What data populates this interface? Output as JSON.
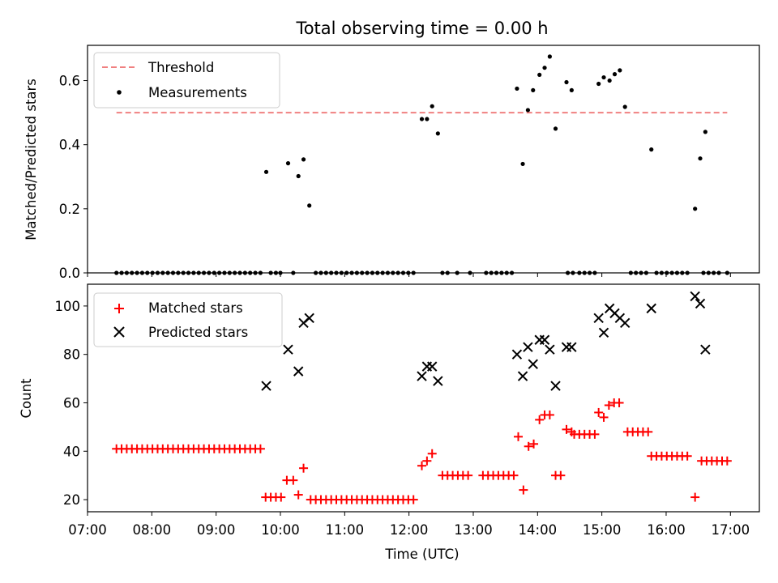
{
  "chart_data": [
    {
      "type": "scatter",
      "title": "Total observing time = 0.00 h",
      "ylabel": "Matched/Predicted stars",
      "xlabel": "",
      "xlim": [
        7.0,
        17.45
      ],
      "ylim": [
        0,
        0.71
      ],
      "yticks": [
        0.0,
        0.2,
        0.4,
        0.6
      ],
      "ytick_labels": [
        "0.0",
        "0.2",
        "0.4",
        "0.6"
      ],
      "legend": {
        "position": "top-left",
        "threshold_label": "Threshold",
        "measurements_label": "Measurements"
      },
      "threshold": {
        "name": "Threshold",
        "value": 0.5,
        "x": [
          7.45,
          16.95
        ],
        "color": "#f08080"
      },
      "zero_x": [
        7.45,
        7.53,
        7.61,
        7.69,
        7.77,
        7.85,
        7.93,
        8.01,
        8.09,
        8.17,
        8.25,
        8.33,
        8.41,
        8.49,
        8.57,
        8.65,
        8.73,
        8.81,
        8.89,
        8.97,
        9.05,
        9.13,
        9.21,
        9.29,
        9.37,
        9.45,
        9.53,
        9.61,
        9.69,
        9.85,
        9.93,
        10.0,
        10.2,
        10.55,
        10.63,
        10.71,
        10.79,
        10.87,
        10.95,
        11.03,
        11.11,
        11.19,
        11.27,
        11.35,
        11.43,
        11.51,
        11.59,
        11.67,
        11.75,
        11.83,
        11.91,
        11.99,
        12.07,
        12.52,
        12.6,
        12.75,
        12.95,
        13.2,
        13.28,
        13.36,
        13.44,
        13.52,
        13.6,
        14.47,
        14.55,
        14.65,
        14.73,
        14.81,
        14.89,
        15.45,
        15.53,
        15.61,
        15.69,
        15.85,
        15.93,
        16.01,
        16.09,
        16.17,
        16.25,
        16.33,
        16.58,
        16.66,
        16.74,
        16.82,
        16.95
      ],
      "measurements": {
        "name": "Measurements",
        "color": "#000000",
        "points": [
          [
            9.78,
            0.315
          ],
          [
            10.12,
            0.342
          ],
          [
            10.28,
            0.302
          ],
          [
            10.36,
            0.354
          ],
          [
            10.45,
            0.21
          ],
          [
            12.2,
            0.48
          ],
          [
            12.28,
            0.48
          ],
          [
            12.36,
            0.52
          ],
          [
            12.45,
            0.435
          ],
          [
            13.68,
            0.575
          ],
          [
            13.77,
            0.34
          ],
          [
            13.85,
            0.508
          ],
          [
            13.93,
            0.57
          ],
          [
            14.03,
            0.618
          ],
          [
            14.11,
            0.64
          ],
          [
            14.19,
            0.675
          ],
          [
            14.28,
            0.45
          ],
          [
            14.45,
            0.595
          ],
          [
            14.53,
            0.57
          ],
          [
            14.95,
            0.59
          ],
          [
            15.03,
            0.61
          ],
          [
            15.12,
            0.6
          ],
          [
            15.2,
            0.62
          ],
          [
            15.28,
            0.632
          ],
          [
            15.36,
            0.518
          ],
          [
            15.77,
            0.385
          ],
          [
            16.45,
            0.2
          ],
          [
            16.53,
            0.357
          ],
          [
            16.61,
            0.44
          ]
        ]
      }
    },
    {
      "type": "scatter",
      "title": "",
      "ylabel": "Count",
      "xlabel": "Time (UTC)",
      "xlim": [
        7.0,
        17.45
      ],
      "ylim": [
        15,
        109
      ],
      "yticks": [
        20,
        40,
        60,
        80,
        100
      ],
      "ytick_labels": [
        "20",
        "40",
        "60",
        "80",
        "100"
      ],
      "xticks": [
        7,
        8,
        9,
        10,
        11,
        12,
        13,
        14,
        15,
        16,
        17
      ],
      "xtick_labels": [
        "07:00",
        "08:00",
        "09:00",
        "10:00",
        "11:00",
        "12:00",
        "13:00",
        "14:00",
        "15:00",
        "16:00",
        "17:00"
      ],
      "legend": {
        "position": "top-left",
        "matched_label": "Matched stars",
        "predicted_label": "Predicted stars"
      },
      "matched": {
        "name": "Matched stars",
        "color": "#ff0000",
        "segments": [
          {
            "x0": 7.45,
            "x1": 9.69,
            "step": 0.08,
            "y": 41
          },
          {
            "x0": 9.77,
            "x1": 10.01,
            "step": 0.08,
            "y": 21
          },
          {
            "x0": 10.47,
            "x1": 12.07,
            "step": 0.08,
            "y": 20
          },
          {
            "x0": 12.52,
            "x1": 12.92,
            "step": 0.08,
            "y": 30
          },
          {
            "x0": 13.15,
            "x1": 13.63,
            "step": 0.08,
            "y": 30
          },
          {
            "x0": 14.57,
            "x1": 14.89,
            "step": 0.08,
            "y": 47
          },
          {
            "x0": 15.4,
            "x1": 15.72,
            "step": 0.08,
            "y": 48
          },
          {
            "x0": 15.77,
            "x1": 16.33,
            "step": 0.08,
            "y": 38
          },
          {
            "x0": 16.55,
            "x1": 16.95,
            "step": 0.08,
            "y": 36
          }
        ],
        "points": [
          [
            10.1,
            28
          ],
          [
            10.2,
            28
          ],
          [
            10.28,
            22
          ],
          [
            10.36,
            33
          ],
          [
            12.2,
            34
          ],
          [
            12.28,
            36
          ],
          [
            12.36,
            39
          ],
          [
            13.7,
            46
          ],
          [
            13.78,
            24
          ],
          [
            13.86,
            42
          ],
          [
            13.94,
            43
          ],
          [
            14.03,
            53
          ],
          [
            14.11,
            55
          ],
          [
            14.19,
            55
          ],
          [
            14.28,
            30
          ],
          [
            14.36,
            30
          ],
          [
            14.45,
            49
          ],
          [
            14.53,
            48
          ],
          [
            14.95,
            56
          ],
          [
            15.03,
            54
          ],
          [
            15.11,
            59
          ],
          [
            15.19,
            60
          ],
          [
            15.27,
            60
          ],
          [
            16.45,
            21
          ]
        ]
      },
      "predicted": {
        "name": "Predicted stars",
        "color": "#000000",
        "points": [
          [
            9.78,
            67
          ],
          [
            10.12,
            82
          ],
          [
            10.28,
            73
          ],
          [
            10.36,
            93
          ],
          [
            10.45,
            95
          ],
          [
            12.2,
            71
          ],
          [
            12.28,
            75
          ],
          [
            12.36,
            75
          ],
          [
            12.45,
            69
          ],
          [
            13.68,
            80
          ],
          [
            13.77,
            71
          ],
          [
            13.85,
            83
          ],
          [
            13.93,
            76
          ],
          [
            14.03,
            86
          ],
          [
            14.11,
            86
          ],
          [
            14.19,
            82
          ],
          [
            14.28,
            67
          ],
          [
            14.45,
            83
          ],
          [
            14.53,
            83
          ],
          [
            14.95,
            95
          ],
          [
            15.03,
            89
          ],
          [
            15.12,
            99
          ],
          [
            15.2,
            97
          ],
          [
            15.28,
            95
          ],
          [
            15.36,
            93
          ],
          [
            15.77,
            99
          ],
          [
            16.45,
            104
          ],
          [
            16.53,
            101
          ],
          [
            16.61,
            82
          ]
        ]
      }
    }
  ]
}
